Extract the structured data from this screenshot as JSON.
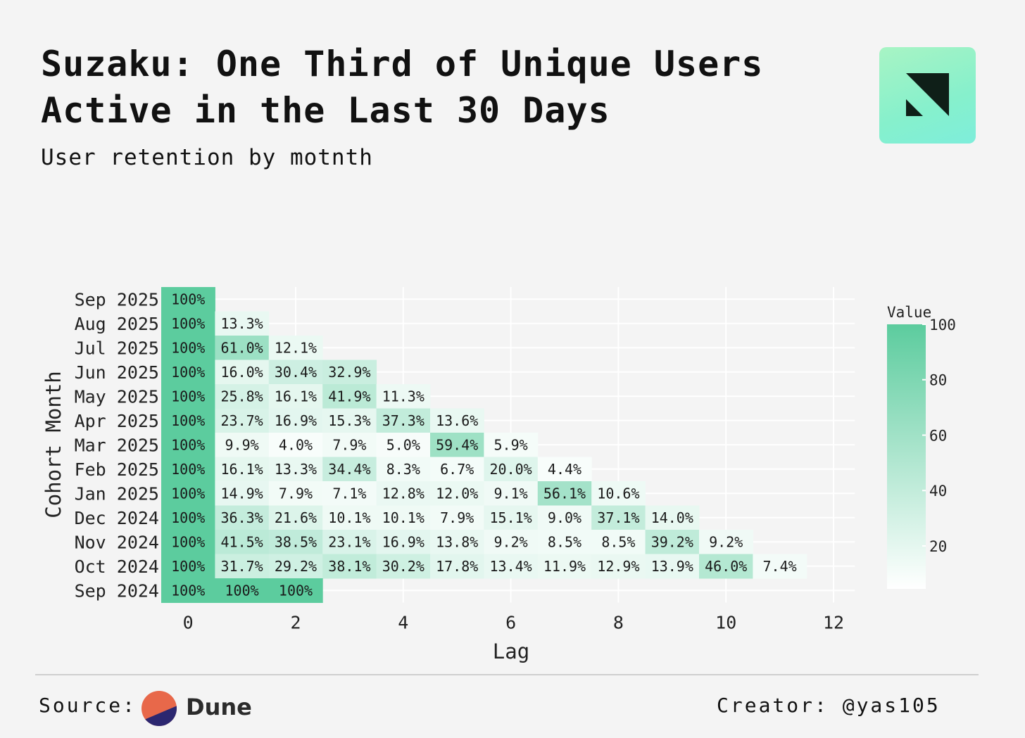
{
  "header": {
    "title_brand": "Suzaku:",
    "title_rest": "One Third of Unique Users Active in the Last 30 Days",
    "subtitle": "User retention by motnth"
  },
  "footer": {
    "source_label": "Source:",
    "source_name": "Dune",
    "creator": "Creator: @yas105"
  },
  "colors": {
    "heat_high": "#5ccc9e",
    "heat_low": "#ffffff",
    "grid": "#ffffff",
    "background": "#f4f4f4"
  },
  "chart_data": {
    "type": "heatmap",
    "xlabel": "Lag",
    "ylabel": "Cohort Month",
    "xlim": [
      -0.5,
      12.5
    ],
    "x_ticks": [
      0,
      2,
      4,
      6,
      8,
      10,
      12
    ],
    "legend": {
      "title": "Value",
      "ticks": [
        20,
        40,
        60,
        80,
        100
      ],
      "range": [
        0,
        100
      ],
      "position": "right"
    },
    "rows": [
      {
        "cohort": "Sep 2025",
        "labels": [
          "100%"
        ],
        "values": [
          100
        ]
      },
      {
        "cohort": "Aug 2025",
        "labels": [
          "100%",
          "13.3%"
        ],
        "values": [
          100,
          13.3
        ]
      },
      {
        "cohort": "Jul 2025",
        "labels": [
          "100%",
          "61.0%",
          "12.1%"
        ],
        "values": [
          100,
          61.0,
          12.1
        ]
      },
      {
        "cohort": "Jun 2025",
        "labels": [
          "100%",
          "16.0%",
          "30.4%",
          "32.9%"
        ],
        "values": [
          100,
          16.0,
          30.4,
          32.9
        ]
      },
      {
        "cohort": "May 2025",
        "labels": [
          "100%",
          "25.8%",
          "16.1%",
          "41.9%",
          "11.3%"
        ],
        "values": [
          100,
          25.8,
          16.1,
          41.9,
          11.3
        ]
      },
      {
        "cohort": "Apr 2025",
        "labels": [
          "100%",
          "23.7%",
          "16.9%",
          "15.3%",
          "37.3%",
          "13.6%"
        ],
        "values": [
          100,
          23.7,
          16.9,
          15.3,
          37.3,
          13.6
        ]
      },
      {
        "cohort": "Mar 2025",
        "labels": [
          "100%",
          "9.9%",
          "4.0%",
          "7.9%",
          "5.0%",
          "59.4%",
          "5.9%"
        ],
        "values": [
          100,
          9.9,
          4.0,
          7.9,
          5.0,
          59.4,
          5.9
        ]
      },
      {
        "cohort": "Feb 2025",
        "labels": [
          "100%",
          "16.1%",
          "13.3%",
          "34.4%",
          "8.3%",
          "6.7%",
          "20.0%",
          "4.4%"
        ],
        "values": [
          100,
          16.1,
          13.3,
          34.4,
          8.3,
          6.7,
          20.0,
          4.4
        ]
      },
      {
        "cohort": "Jan 2025",
        "labels": [
          "100%",
          "14.9%",
          "7.9%",
          "7.1%",
          "12.8%",
          "12.0%",
          "9.1%",
          "56.1%",
          "10.6%"
        ],
        "values": [
          100,
          14.9,
          7.9,
          7.1,
          12.8,
          12.0,
          9.1,
          56.1,
          10.6
        ]
      },
      {
        "cohort": "Dec 2024",
        "labels": [
          "100%",
          "36.3%",
          "21.6%",
          "10.1%",
          "10.1%",
          "7.9%",
          "15.1%",
          "9.0%",
          "37.1%",
          "14.0%"
        ],
        "values": [
          100,
          36.3,
          21.6,
          10.1,
          10.1,
          7.9,
          15.1,
          9.0,
          37.1,
          14.0
        ]
      },
      {
        "cohort": "Nov 2024",
        "labels": [
          "100%",
          "41.5%",
          "38.5%",
          "23.1%",
          "16.9%",
          "13.8%",
          "9.2%",
          "8.5%",
          "8.5%",
          "39.2%",
          "9.2%"
        ],
        "values": [
          100,
          41.5,
          38.5,
          23.1,
          16.9,
          13.8,
          9.2,
          8.5,
          8.5,
          39.2,
          9.2
        ]
      },
      {
        "cohort": "Oct 2024",
        "labels": [
          "100%",
          "31.7%",
          "29.2%",
          "38.1%",
          "30.2%",
          "17.8%",
          "13.4%",
          "11.9%",
          "12.9%",
          "13.9%",
          "46.0%",
          "7.4%"
        ],
        "values": [
          100,
          31.7,
          29.2,
          38.1,
          30.2,
          17.8,
          13.4,
          11.9,
          12.9,
          13.9,
          46.0,
          7.4
        ]
      },
      {
        "cohort": "Sep 2024",
        "labels": [
          "100%",
          "100%",
          "100%"
        ],
        "values": [
          100,
          100,
          100
        ]
      }
    ]
  }
}
